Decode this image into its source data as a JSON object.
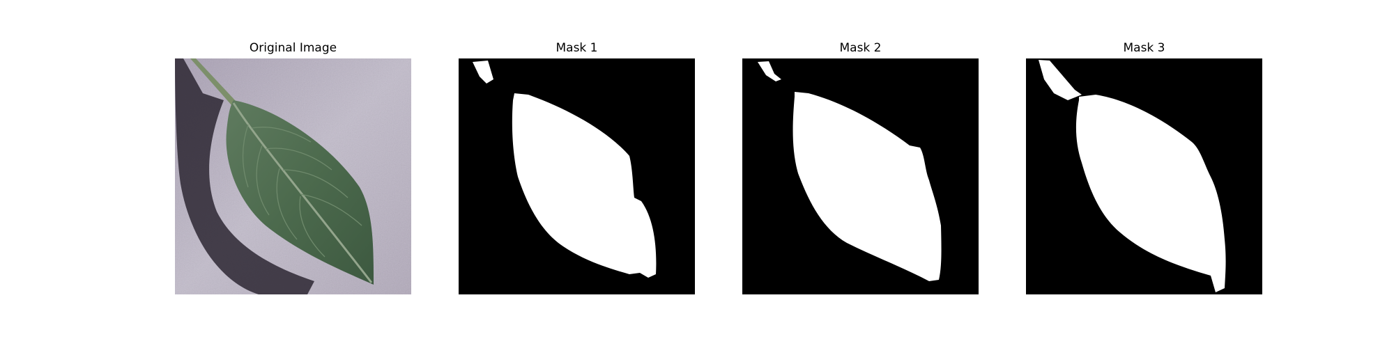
{
  "figure": {
    "panels": [
      {
        "title": "Original Image"
      },
      {
        "title": "Mask 1"
      },
      {
        "title": "Mask 2"
      },
      {
        "title": "Mask 3"
      }
    ]
  },
  "colors": {
    "background": "#ffffff",
    "mask_background": "#000000",
    "mask_foreground": "#ffffff",
    "photo_surface": "#b7afc0",
    "leaf_green": "#4f6a4f"
  }
}
